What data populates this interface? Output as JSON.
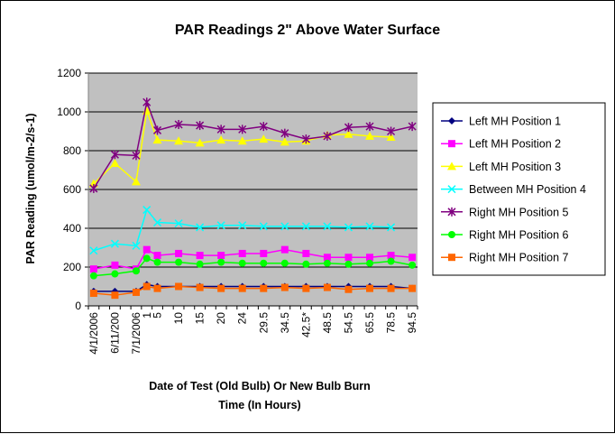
{
  "chart_data": {
    "type": "line",
    "title": "PAR Readings 2\" Above Water Surface",
    "xlabel_lines": [
      "Date of Test (Old Bulb) Or New Bulb Burn",
      "Time (In Hours)"
    ],
    "ylabel": "PAR Reading (umol/m-2/s-1)",
    "ylim": [
      0,
      1200
    ],
    "yticks": [
      "0",
      "200",
      "400",
      "600",
      "800",
      "1000",
      "1200"
    ],
    "grid": "horizontal",
    "legend_position": "right",
    "plot_background": "#c0c0c0",
    "categories": [
      "4/1/2006",
      "",
      "6/11/200",
      "",
      "7/1/2006",
      "1",
      "5",
      "",
      "10",
      "",
      "15",
      "",
      "20",
      "",
      "24",
      "",
      "29.5",
      "",
      "34.5",
      "",
      "42.5*",
      "",
      "48.5",
      "",
      "54.5",
      "",
      "65.5",
      "",
      "78.5",
      "",
      "94.5"
    ],
    "visible_tick_labels": [
      "4/1/2006",
      "6/11/200",
      "7/1/2006",
      "1",
      "5",
      "10",
      "15",
      "20",
      "24",
      "29.5",
      "34.5",
      "42.5*",
      "48.5",
      "54.5",
      "65.5",
      "78.5",
      "94.5"
    ],
    "series": [
      {
        "name": "Left MH Position 1",
        "color": "#000080",
        "marker": "diamond",
        "values": [
          75,
          null,
          75,
          null,
          75,
          110,
          100,
          null,
          100,
          null,
          100,
          null,
          100,
          null,
          100,
          null,
          100,
          null,
          100,
          null,
          100,
          null,
          100,
          null,
          100,
          null,
          100,
          null,
          100,
          null,
          90
        ]
      },
      {
        "name": "Left MH Position 2",
        "color": "#ff00ff",
        "marker": "square",
        "values": [
          190,
          null,
          210,
          null,
          190,
          290,
          260,
          null,
          270,
          null,
          260,
          null,
          260,
          null,
          270,
          null,
          270,
          null,
          290,
          null,
          270,
          null,
          250,
          null,
          250,
          null,
          250,
          null,
          260,
          null,
          250
        ]
      },
      {
        "name": "Left MH Position 3",
        "color": "#ffff00",
        "marker": "triangle",
        "values": [
          630,
          null,
          735,
          null,
          640,
          1005,
          855,
          null,
          850,
          null,
          840,
          null,
          855,
          null,
          850,
          null,
          860,
          null,
          845,
          null,
          850,
          null,
          880,
          null,
          885,
          null,
          875,
          null,
          870,
          null,
          null
        ]
      },
      {
        "name": "Between MH Position 4",
        "color": "#00ffff",
        "marker": "x",
        "values": [
          285,
          null,
          320,
          null,
          310,
          495,
          430,
          null,
          425,
          null,
          405,
          null,
          415,
          null,
          415,
          null,
          410,
          null,
          410,
          null,
          410,
          null,
          410,
          null,
          405,
          null,
          410,
          null,
          405,
          null,
          null
        ]
      },
      {
        "name": "Right MH Position 5",
        "color": "#800080",
        "marker": "star",
        "values": [
          605,
          null,
          780,
          null,
          775,
          1050,
          905,
          null,
          935,
          null,
          930,
          null,
          910,
          null,
          910,
          null,
          925,
          null,
          890,
          null,
          860,
          null,
          875,
          null,
          920,
          null,
          925,
          null,
          900,
          null,
          925
        ]
      },
      {
        "name": "Right MH Position 6",
        "color": "#00ff00",
        "marker": "circle",
        "values": [
          155,
          null,
          165,
          null,
          180,
          245,
          225,
          null,
          225,
          null,
          215,
          null,
          225,
          null,
          220,
          null,
          220,
          null,
          220,
          null,
          215,
          null,
          220,
          null,
          215,
          null,
          220,
          null,
          230,
          null,
          210
        ]
      },
      {
        "name": "Right MH Position 7",
        "color": "#ff6600",
        "marker": "square",
        "values": [
          65,
          null,
          55,
          null,
          70,
          100,
          90,
          null,
          100,
          null,
          95,
          null,
          90,
          null,
          90,
          null,
          90,
          null,
          95,
          null,
          90,
          null,
          95,
          null,
          85,
          null,
          90,
          null,
          90,
          null,
          90
        ]
      }
    ]
  }
}
